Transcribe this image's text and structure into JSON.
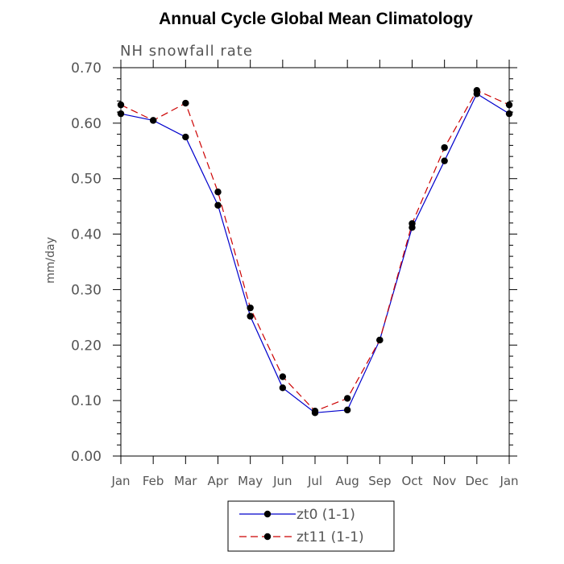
{
  "chart_data": {
    "type": "line",
    "title": "Annual Cycle Global Mean Climatology",
    "subtitle": "NH snowfall rate",
    "ylabel": "mm/day",
    "xlabel": "",
    "ylim": [
      0.0,
      0.7
    ],
    "yticks": [
      "0.00",
      "0.10",
      "0.20",
      "0.30",
      "0.40",
      "0.50",
      "0.60",
      "0.70"
    ],
    "yticks_values": [
      0.0,
      0.1,
      0.2,
      0.3,
      0.4,
      0.5,
      0.6,
      0.7
    ],
    "categories": [
      "Jan",
      "Feb",
      "Mar",
      "Apr",
      "May",
      "Jun",
      "Jul",
      "Aug",
      "Sep",
      "Oct",
      "Nov",
      "Dec",
      "Jan"
    ],
    "series": [
      {
        "name": "zt0 (1-1)",
        "color": "#0000cc",
        "dash": "solid",
        "values": [
          0.617,
          0.605,
          0.575,
          0.452,
          0.252,
          0.123,
          0.078,
          0.083,
          0.209,
          0.412,
          0.532,
          0.653,
          0.617
        ]
      },
      {
        "name": "zt11 (1-1)",
        "color": "#cc0000",
        "dash": "dashed",
        "values": [
          0.633,
          0.605,
          0.636,
          0.476,
          0.267,
          0.143,
          0.081,
          0.104,
          0.209,
          0.419,
          0.556,
          0.659,
          0.633
        ]
      }
    ],
    "grid": false,
    "legend_position": "bottom-center"
  }
}
